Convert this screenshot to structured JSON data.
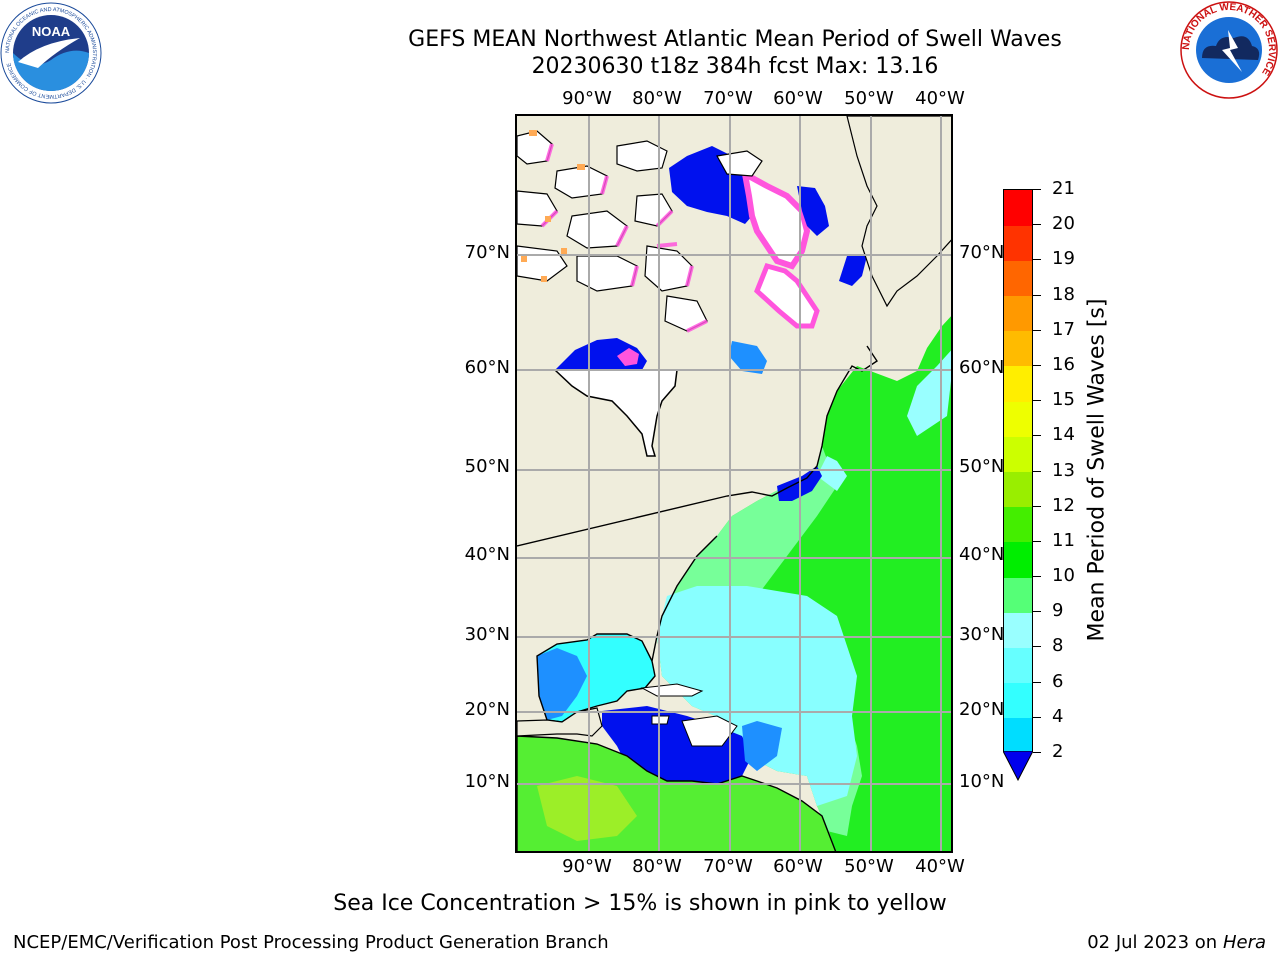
{
  "title_line1": "GEFS MEAN Northwest Atlantic Mean Period of Swell Waves",
  "title_line2": "20230630 t18z 384h fcst   Max: 13.16",
  "map": {
    "lon_labels": [
      "90°W",
      "80°W",
      "70°W",
      "60°W",
      "50°W",
      "40°W"
    ],
    "lat_labels_left": [
      "70°N",
      "60°N",
      "50°N",
      "40°N",
      "30°N",
      "20°N",
      "10°N"
    ],
    "lat_labels_right": [
      "70°N",
      "60°N",
      "50°N",
      "40°N",
      "30°N",
      "20°N",
      "10°N"
    ],
    "colors": {
      "land": "#efeddc",
      "coast": "#000000",
      "grid": "#aaaaaa",
      "ocean_green": "#22ee22",
      "ocean_cyan": "#88ffff",
      "ocean_blue": "#0011ee",
      "ice_pink": "#ff55dd"
    }
  },
  "colorbar": {
    "label": "Mean Period of Swell Waves [s]",
    "ticks": [
      "2",
      "4",
      "6",
      "8",
      "9",
      "10",
      "11",
      "12",
      "13",
      "14",
      "15",
      "16",
      "17",
      "18",
      "19",
      "20",
      "21"
    ],
    "colors": [
      "#0066ff",
      "#00ddff",
      "#33ffff",
      "#66ffff",
      "#99ffff",
      "#55ff77",
      "#00ee00",
      "#44ee00",
      "#99ee00",
      "#ccff00",
      "#eeff00",
      "#ffee00",
      "#ffbb00",
      "#ff9900",
      "#ff6600",
      "#ff3300",
      "#ff0000"
    ],
    "under_color": "#0000ee"
  },
  "logos": {
    "noaa_text": "NOAA",
    "noaa_ring": "NATIONAL OCEANIC AND ATMOSPHERIC ADMINISTRATION · U.S. DEPARTMENT OF COMMERCE",
    "nws_ring": "NATIONAL WEATHER SERVICE"
  },
  "note": "Sea Ice Concentration > 15% is shown in pink to yellow",
  "footer_left": "NCEP/EMC/Verification Post Processing Product Generation Branch",
  "footer_date": "02 Jul 2023 on ",
  "footer_host": "Hera"
}
